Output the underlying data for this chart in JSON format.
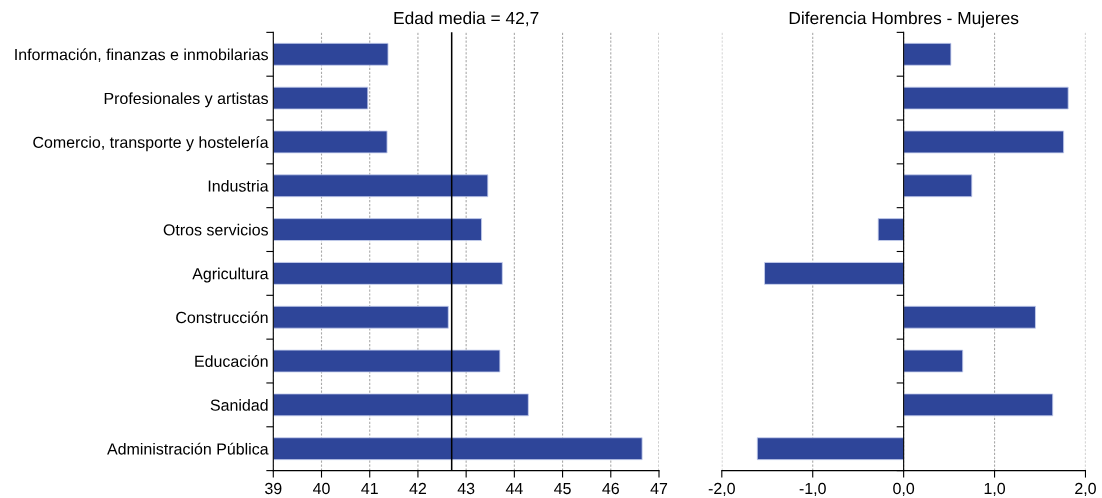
{
  "chart_data": [
    {
      "type": "bar",
      "orientation": "horizontal",
      "title": "Edad media = 42,7",
      "categories": [
        "Información, finanzas e inmobilarias",
        "Profesionales y artistas",
        "Comercio, transporte y hostelería",
        "Industria",
        "Otros servicios",
        "Agricultura",
        "Construcción",
        "Educación",
        "Sanidad",
        "Administración Pública"
      ],
      "values": [
        41.38,
        40.96,
        41.36,
        43.45,
        43.32,
        43.75,
        42.63,
        43.7,
        44.29,
        46.65
      ],
      "color": "#2e4599",
      "xlim": [
        39,
        47
      ],
      "xticks": [
        39,
        40,
        41,
        42,
        43,
        44,
        45,
        46,
        47
      ],
      "grid": "x",
      "ref_lines": [
        {
          "axis": "x",
          "value": 42.7,
          "color": "#000000"
        }
      ]
    },
    {
      "type": "bar",
      "orientation": "horizontal",
      "title": "Diferencia Hombres - Mujeres",
      "categories": [
        null,
        null,
        null,
        null,
        null,
        null,
        null,
        null,
        null,
        null
      ],
      "values": [
        0.52,
        1.81,
        1.76,
        0.75,
        -0.28,
        -1.53,
        1.45,
        0.65,
        1.64,
        -1.61
      ],
      "color": "#2e4599",
      "xlim": [
        -2,
        2
      ],
      "xticks": [
        {
          "value": -2,
          "label": "-2,0"
        },
        {
          "value": -1,
          "label": "-1,0"
        },
        {
          "value": 0,
          "label": "0,0"
        },
        {
          "value": 1,
          "label": "1,0"
        },
        {
          "value": 2,
          "label": "2,0"
        }
      ],
      "grid": "x",
      "tick_labels": "x"
    }
  ]
}
